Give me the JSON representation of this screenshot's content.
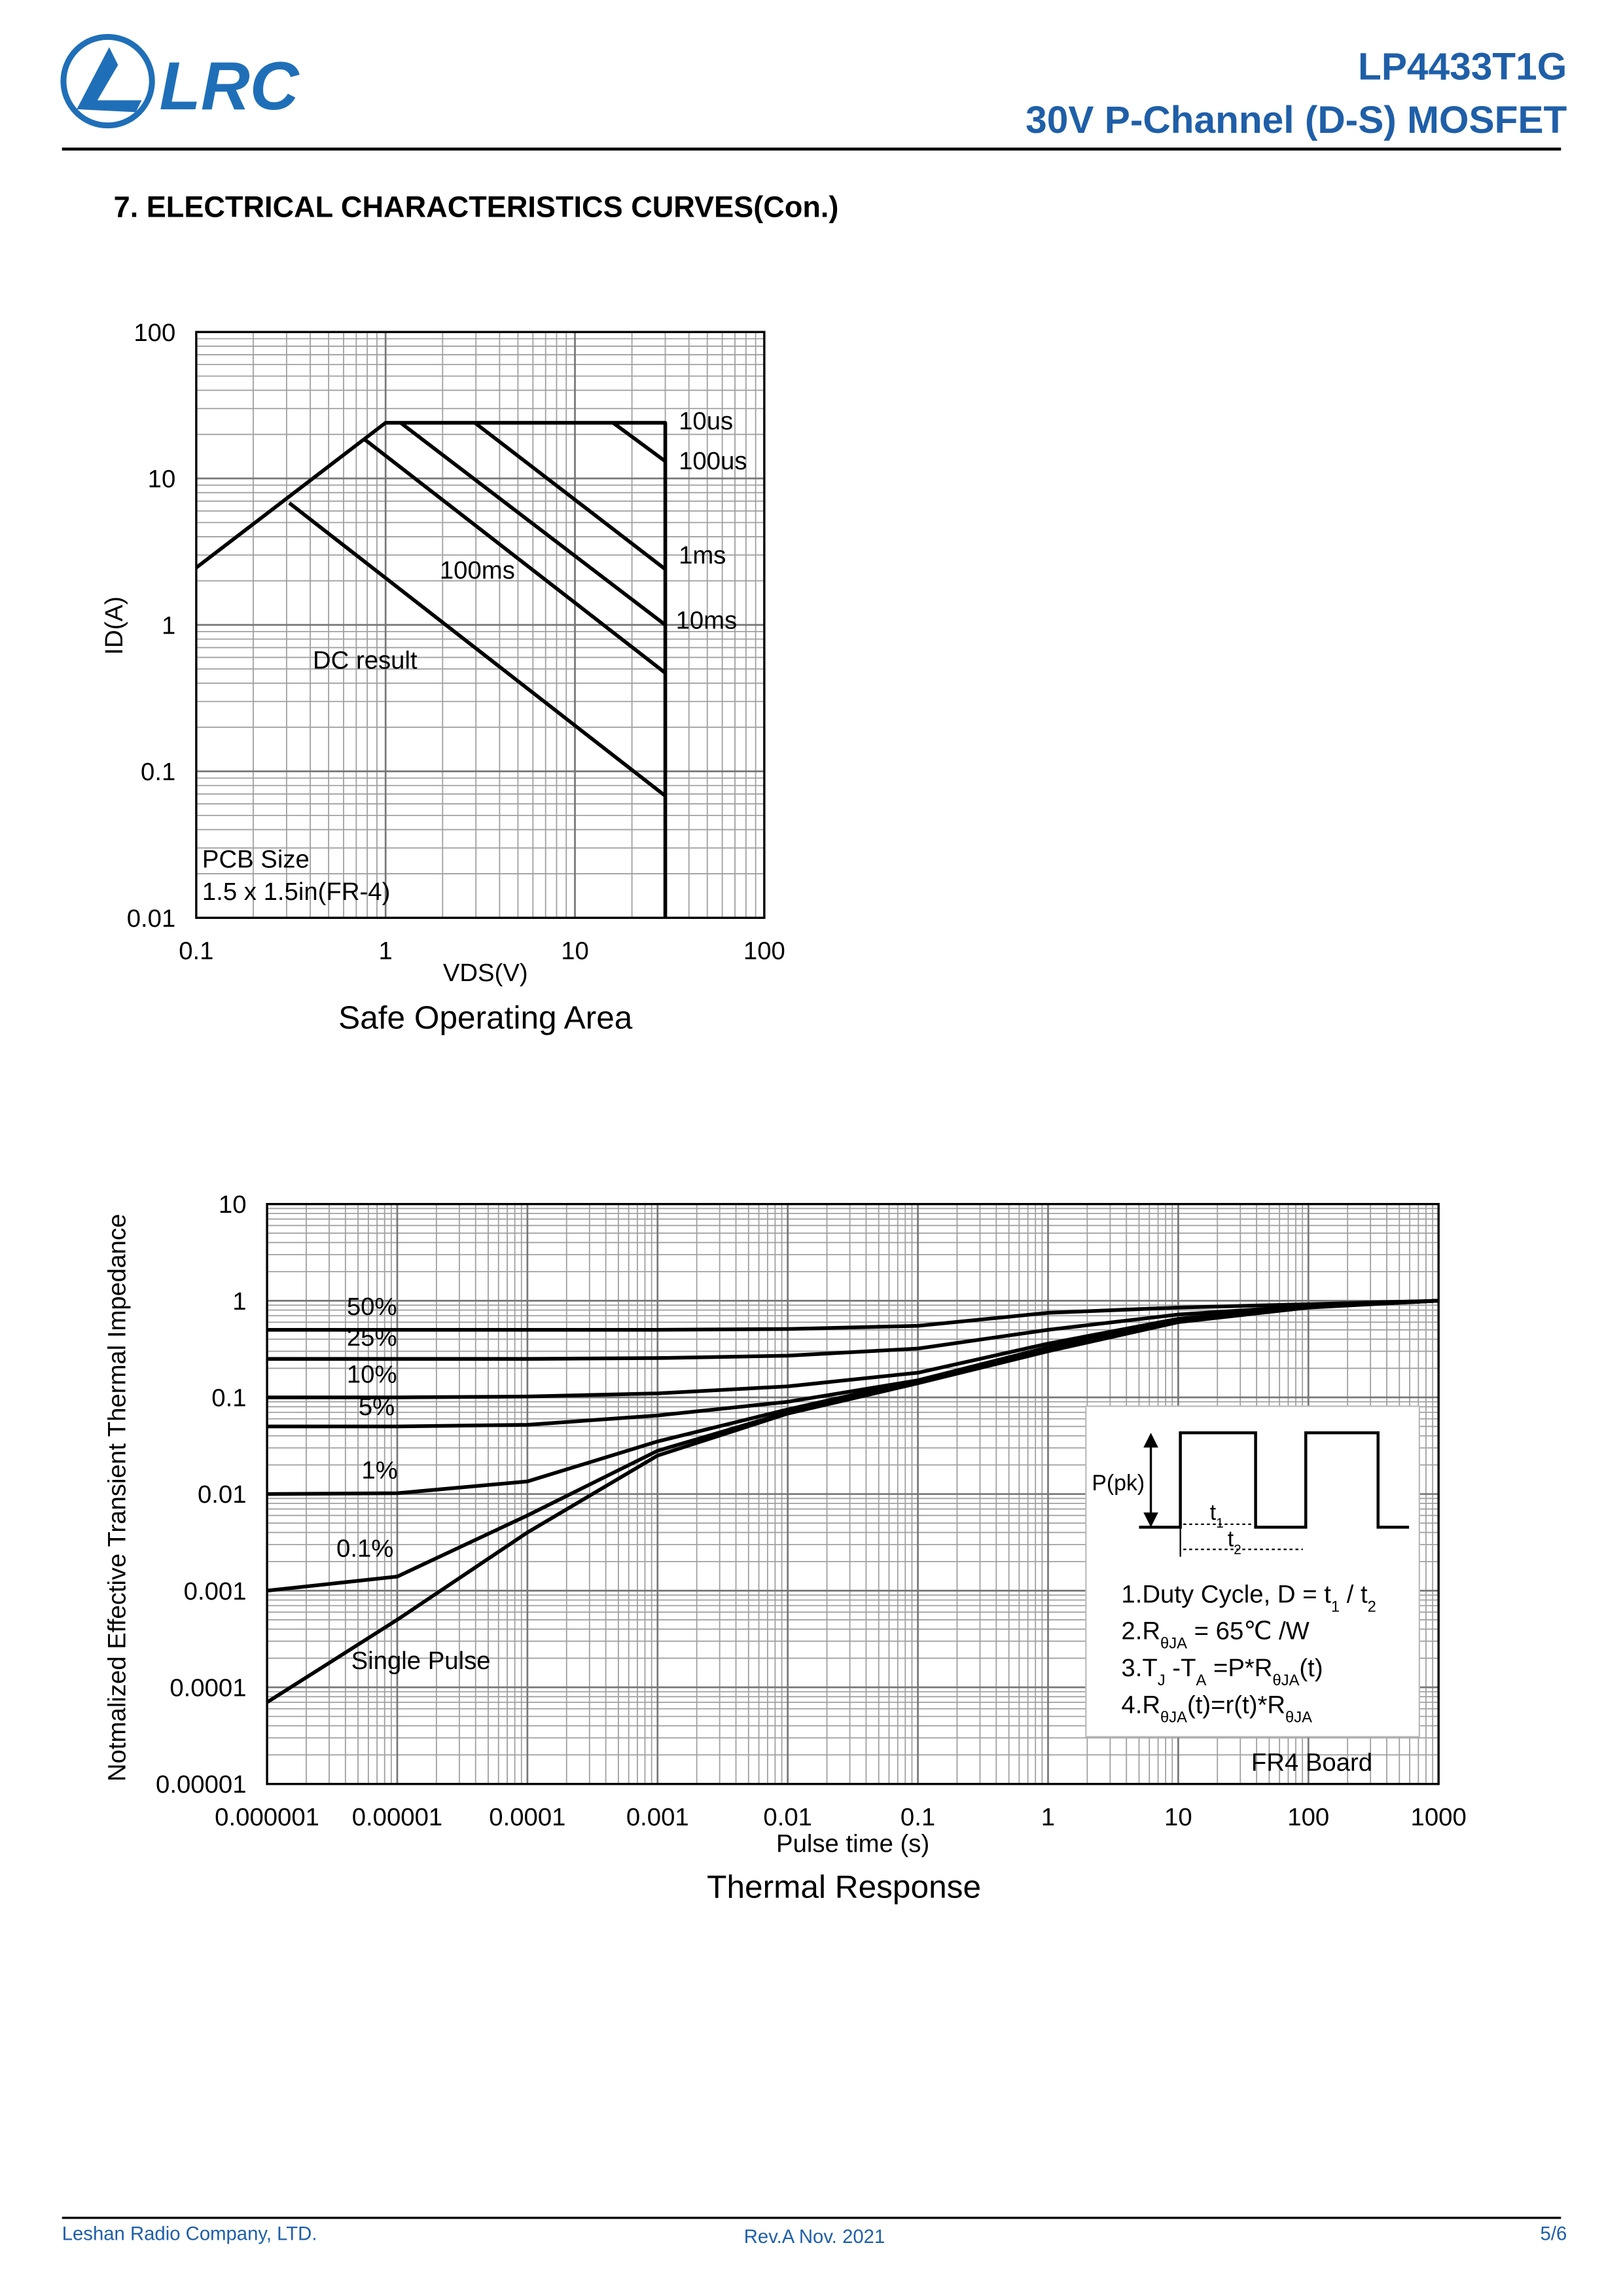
{
  "header": {
    "logo": "LRC",
    "part_number": "LP4433T1G",
    "description": "30V P-Channel (D-S) MOSFET"
  },
  "section_title": "7. ELECTRICAL CHARACTERISTICS CURVES(Con.)",
  "chart_data": [
    {
      "type": "line",
      "title": "Safe Operating Area",
      "xlabel": "VDS(V)",
      "ylabel": "ID(A)",
      "xscale": "log",
      "yscale": "log",
      "grid": true,
      "minor_grid": true,
      "xlim": [
        0.1,
        100
      ],
      "ylim": [
        0.01,
        100
      ],
      "xticks": [
        0.1,
        1,
        10,
        100
      ],
      "yticks": [
        0.01,
        0.1,
        1,
        10,
        100
      ],
      "annotations": [
        "PCB Size",
        "1.5 x 1.5in(FR-4)"
      ],
      "series": [
        {
          "name": "10us",
          "color": "#000000",
          "x": [
            0.1,
            1,
            30,
            30
          ],
          "values": [
            2.46,
            24,
            24,
            0.01
          ]
        },
        {
          "name": "100us",
          "color": "#000000",
          "x": [
            15.9,
            30
          ],
          "values": [
            24,
            13.1
          ]
        },
        {
          "name": "1ms",
          "color": "#000000",
          "x": [
            2.96,
            30
          ],
          "values": [
            24,
            2.4
          ]
        },
        {
          "name": "10ms",
          "color": "#000000",
          "x": [
            1.2,
            30
          ],
          "values": [
            24,
            1.0
          ]
        },
        {
          "name": "100ms",
          "color": "#000000",
          "x": [
            0.77,
            30
          ],
          "values": [
            18.6,
            0.47
          ]
        },
        {
          "name": "DC result",
          "color": "#000000",
          "x": [
            0.31,
            30
          ],
          "values": [
            6.8,
            0.068
          ]
        }
      ]
    },
    {
      "type": "line",
      "title": "Thermal Response",
      "xlabel": "Pulse time (s)",
      "ylabel": "Notmalized Effective Transient Thermal Impedance",
      "xscale": "log",
      "yscale": "log",
      "grid": true,
      "minor_grid": true,
      "xlim": [
        1e-06,
        1000
      ],
      "ylim": [
        1e-05,
        10
      ],
      "xticks": [
        1e-06,
        1e-05,
        0.0001,
        0.001,
        0.01,
        0.1,
        1,
        10,
        100,
        1000
      ],
      "yticks": [
        1e-05,
        0.0001,
        0.001,
        0.01,
        0.1,
        1,
        10
      ],
      "x": [
        1e-06,
        1e-05,
        0.0001,
        0.001,
        0.01,
        0.1,
        1,
        10,
        100,
        1000
      ],
      "annotations": [
        "FR4 Board"
      ],
      "inset": {
        "pulse_label": "P(pk)",
        "t1": [
          "t",
          "1"
        ],
        "t2": [
          "t",
          "2"
        ],
        "notes": [
          [
            "1.Duty Cycle, D = t",
            "1",
            " / t",
            "2"
          ],
          [
            "2.R",
            "θJA",
            " = 65℃ /W"
          ],
          [
            "3.T",
            "J",
            " -T",
            "A",
            " =P*R",
            "θJA",
            "(t)"
          ],
          [
            "4.R",
            "θJA",
            "(t)=r(t)*R",
            "θJA"
          ]
        ]
      },
      "series": [
        {
          "name": "50%",
          "color": "#000000",
          "values": [
            0.5,
            0.5,
            0.5,
            0.5,
            0.51,
            0.55,
            0.75,
            0.85,
            0.92,
            1
          ]
        },
        {
          "name": "25%",
          "color": "#000000",
          "values": [
            0.25,
            0.25,
            0.25,
            0.255,
            0.27,
            0.32,
            0.5,
            0.72,
            0.88,
            1
          ]
        },
        {
          "name": "10%",
          "color": "#000000",
          "values": [
            0.1,
            0.1,
            0.102,
            0.11,
            0.13,
            0.18,
            0.36,
            0.65,
            0.87,
            1
          ]
        },
        {
          "name": "5%",
          "color": "#000000",
          "values": [
            0.05,
            0.05,
            0.052,
            0.065,
            0.09,
            0.15,
            0.33,
            0.63,
            0.86,
            1
          ]
        },
        {
          "name": "1%",
          "color": "#000000",
          "values": [
            0.01,
            0.0102,
            0.0135,
            0.035,
            0.075,
            0.15,
            0.32,
            0.62,
            0.86,
            1
          ]
        },
        {
          "name": "0.1%",
          "color": "#000000",
          "values": [
            0.001,
            0.0014,
            0.006,
            0.028,
            0.07,
            0.145,
            0.31,
            0.62,
            0.86,
            1
          ]
        },
        {
          "name": "Single Pulse",
          "color": "#000000",
          "values": [
            7e-05,
            0.0005,
            0.004,
            0.025,
            0.068,
            0.14,
            0.3,
            0.6,
            0.85,
            1
          ]
        }
      ]
    }
  ],
  "footer": {
    "company": "Leshan Radio Company, LTD.",
    "revision": "Rev.A  Nov. 2021",
    "page": "5/6"
  }
}
